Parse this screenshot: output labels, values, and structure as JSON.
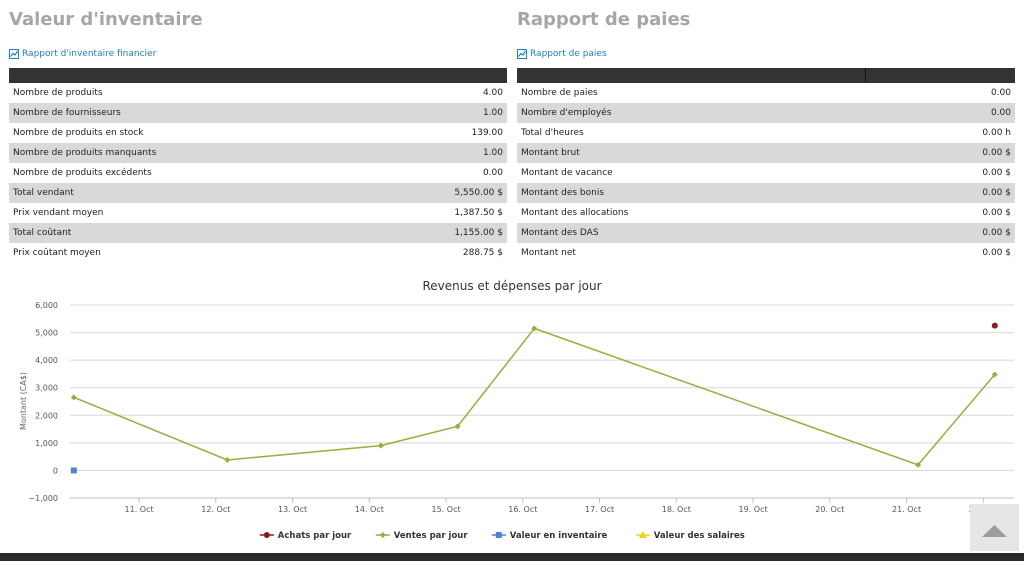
{
  "inventory": {
    "title": "Valeur d'inventaire",
    "link_label": "Rapport d'inventaire financier",
    "rows": [
      {
        "label": "Nombre de produits",
        "value": "4.00"
      },
      {
        "label": "Nombre de fournisseurs",
        "value": "1.00"
      },
      {
        "label": "Nombre de produits en stock",
        "value": "139.00"
      },
      {
        "label": "Nombre de produits manquants",
        "value": "1.00"
      },
      {
        "label": "Nombre de produits excédents",
        "value": "0.00"
      },
      {
        "label": "Total vendant",
        "value": "5,550.00 $"
      },
      {
        "label": "Prix vendant moyen",
        "value": "1,387.50 $"
      },
      {
        "label": "Total coûtant",
        "value": "1,155.00 $"
      },
      {
        "label": "Prix coûtant moyen",
        "value": "288.75 $"
      }
    ]
  },
  "payroll": {
    "title": "Rapport de paies",
    "link_label": "Rapport de paies",
    "rows": [
      {
        "label": "Nombre de paies",
        "value": "0.00"
      },
      {
        "label": "Nombre d'employés",
        "value": "0.00"
      },
      {
        "label": "Total d'heures",
        "value": "0.00 h"
      },
      {
        "label": "Montant brut",
        "value": "0.00 $"
      },
      {
        "label": "Montant de vacance",
        "value": "0.00 $"
      },
      {
        "label": "Montant des bonis",
        "value": "0.00 $"
      },
      {
        "label": "Montant des allocations",
        "value": "0.00 $"
      },
      {
        "label": "Montant des DAS",
        "value": "0.00 $"
      },
      {
        "label": "Montant net",
        "value": "0.00 $"
      }
    ]
  },
  "chart_data": {
    "type": "line",
    "title": "Revenus et dépenses par jour",
    "ylabel": "Montant (CA$)",
    "xlabel": "",
    "ylim": [
      -1000,
      6000
    ],
    "yticks": [
      -1000,
      0,
      1000,
      2000,
      3000,
      4000,
      5000,
      6000
    ],
    "ytick_labels": [
      "−1,000",
      "0",
      "1,000",
      "2,000",
      "3,000",
      "4,000",
      "5,000",
      "6,000"
    ],
    "x_tick_labels": [
      "11. Oct",
      "12. Oct",
      "13. Oct",
      "14. Oct",
      "15. Oct",
      "16. Oct",
      "17. Oct",
      "18. Oct",
      "19. Oct",
      "20. Oct",
      "21. Oct",
      "22. Oct"
    ],
    "x_tick_days": [
      11,
      12,
      13,
      14,
      15,
      16,
      17,
      18,
      19,
      20,
      21,
      22
    ],
    "xlim_days": [
      10.1,
      22.4
    ],
    "grid": true,
    "legend_position": "bottom",
    "series": [
      {
        "name": "Achats par jour",
        "color": "#8b1a1a",
        "marker": "circle",
        "line": false,
        "points": [
          {
            "x": 22.15,
            "y": 5250
          }
        ]
      },
      {
        "name": "Ventes par jour",
        "color": "#8db33d",
        "marker": "diamond",
        "line": true,
        "points": [
          {
            "x": 10.15,
            "y": 2650
          },
          {
            "x": 12.15,
            "y": 380
          },
          {
            "x": 14.15,
            "y": 900
          },
          {
            "x": 15.15,
            "y": 1600
          },
          {
            "x": 16.15,
            "y": 5150
          },
          {
            "x": 21.15,
            "y": 200
          },
          {
            "x": 22.15,
            "y": 3480
          }
        ]
      },
      {
        "name": "Valeur en inventaire",
        "color": "#4a86d8",
        "marker": "square",
        "line": false,
        "points": [
          {
            "x": 10.15,
            "y": 0
          }
        ]
      },
      {
        "name": "Valeur des salaires",
        "color": "#f2d21b",
        "marker": "triangle",
        "line": false,
        "points": []
      }
    ]
  },
  "icons": {
    "report_icon": "chart-report-icon",
    "scroll_top_icon": "caret-up-icon"
  }
}
